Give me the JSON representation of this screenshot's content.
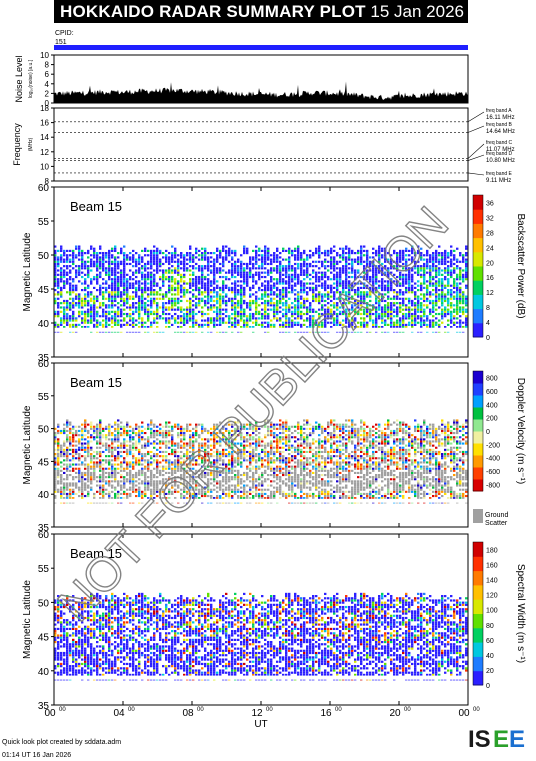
{
  "header": {
    "title": "HOKKAIDO RADAR SUMMARY PLOT",
    "date": "15 Jan 2026"
  },
  "cpid": {
    "label": "CPID:",
    "value": "151"
  },
  "footer": {
    "line1": "Quick look plot created by sddata.adm",
    "line2": "01:14 UT 16 Jan 2026"
  },
  "watermark": "NOT FOR PUBLICATION",
  "logo_text": "ISEE",
  "colors": {
    "cpid_bar": "#1f1fff",
    "noise_fill": "#000000",
    "ground_scatter": "#a0a0a0",
    "data_gap_band": "#ffffff"
  },
  "chart_data": [
    {
      "type": "area",
      "name": "noise",
      "ylabel": "Noise Level",
      "ylabel_sub": "log₁₀(noise) [a.u.]",
      "ylim": [
        0,
        10
      ],
      "yticks": [
        "0",
        "2",
        "4",
        "6",
        "8",
        "10"
      ],
      "x_hours": [
        0,
        1,
        2,
        3,
        4,
        5,
        6,
        7,
        8,
        9,
        10,
        11,
        12,
        13,
        14,
        15,
        16,
        17,
        18,
        19,
        20,
        21,
        22,
        23,
        24
      ],
      "values": [
        1.7,
        1.8,
        1.9,
        2.1,
        2.0,
        2.2,
        2.3,
        2.4,
        2.2,
        2.1,
        1.9,
        1.7,
        1.6,
        1.5,
        1.6,
        1.9,
        1.8,
        1.6,
        1.2,
        0.9,
        1.1,
        1.4,
        1.6,
        1.7,
        1.8
      ]
    },
    {
      "type": "line",
      "name": "frequency",
      "ylabel": "Frequency",
      "ylabel_unit": "(MHz)",
      "ylim": [
        8,
        18
      ],
      "yticks": [
        "8",
        "10",
        "12",
        "14",
        "16",
        "18"
      ],
      "bands": [
        {
          "label": "freq band A",
          "freq": "16.11 MHz",
          "value": 16.11
        },
        {
          "label": "freq band B",
          "freq": "14.64 MHz",
          "value": 14.64
        },
        {
          "label": "freq band C",
          "freq": "11.07 MHz",
          "value": 11.07
        },
        {
          "label": "freq band D",
          "freq": "10.80 MHz",
          "value": 10.8
        },
        {
          "label": "freq band E",
          "freq": "9.11 MHz",
          "value": 9.11
        }
      ]
    },
    {
      "type": "heatmap",
      "name": "backscatter-power",
      "beam": "Beam 15",
      "ylabel": "Magnetic Latitude",
      "ylim": [
        35,
        60
      ],
      "yticks": [
        "35",
        "40",
        "45",
        "50",
        "55",
        "60"
      ],
      "colorbar_label": "Backscatter Power (dB)",
      "colorbar_ticks": [
        "0",
        "4",
        "8",
        "12",
        "16",
        "20",
        "24",
        "28",
        "32",
        "36"
      ],
      "clim": [
        0,
        38
      ]
    },
    {
      "type": "heatmap",
      "name": "doppler-velocity",
      "beam": "Beam 15",
      "ylabel": "Magnetic Latitude",
      "ylim": [
        35,
        60
      ],
      "yticks": [
        "35",
        "40",
        "45",
        "50",
        "55",
        "60"
      ],
      "colorbar_label": "Doppler Velocity (m s⁻¹)",
      "colorbar_ticks": [
        "-800",
        "-600",
        "-400",
        "-200",
        "0",
        "200",
        "400",
        "600",
        "800"
      ],
      "clim": [
        -900,
        900
      ],
      "ground_scatter_label": [
        "Ground",
        "Scatter"
      ]
    },
    {
      "type": "heatmap",
      "name": "spectral-width",
      "beam": "Beam 15",
      "ylabel": "Magnetic Latitude",
      "ylim": [
        35,
        60
      ],
      "yticks": [
        "35",
        "40",
        "45",
        "50",
        "55",
        "60"
      ],
      "colorbar_label": "Spectral Width (m s⁻¹)",
      "colorbar_ticks": [
        "0",
        "20",
        "40",
        "60",
        "80",
        "100",
        "120",
        "140",
        "160",
        "180"
      ],
      "clim": [
        0,
        190
      ]
    }
  ],
  "xaxis": {
    "label": "UT",
    "ticks": [
      "00",
      "04",
      "08",
      "12",
      "16",
      "20",
      "00"
    ],
    "tick_sup": "00",
    "range_hours": [
      0,
      24
    ]
  }
}
